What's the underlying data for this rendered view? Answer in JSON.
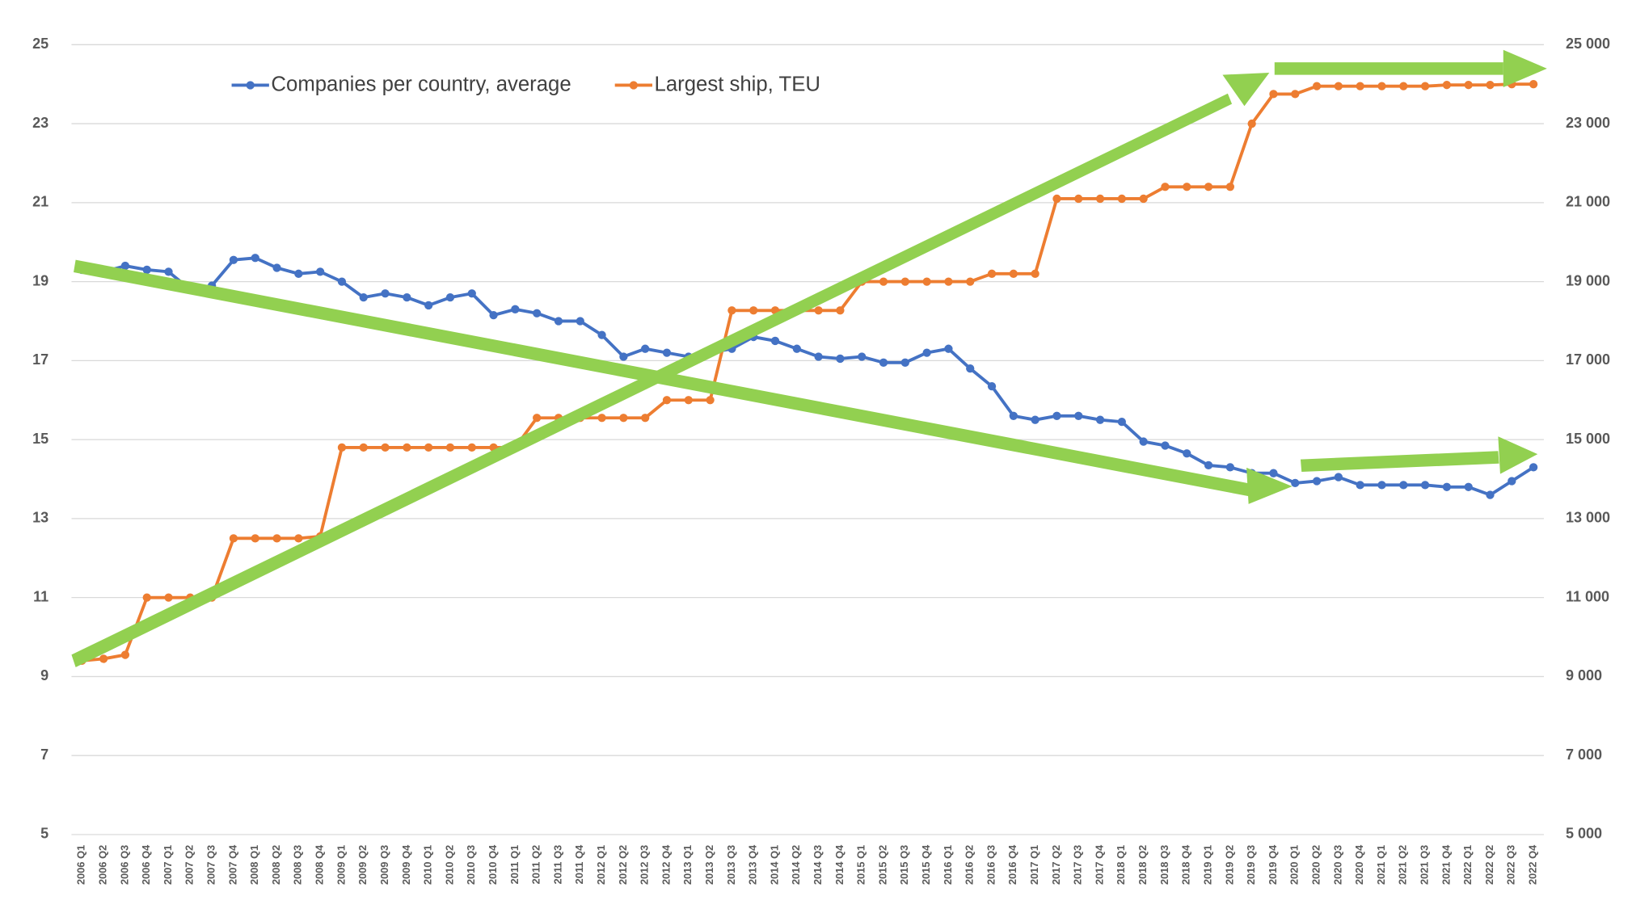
{
  "chart_data": {
    "type": "line",
    "categories": [
      "2006 Q1",
      "2006 Q2",
      "2006 Q3",
      "2006 Q4",
      "2007 Q1",
      "2007 Q2",
      "2007 Q3",
      "2007 Q4",
      "2008 Q1",
      "2008 Q2",
      "2008 Q3",
      "2008 Q4",
      "2009 Q1",
      "2009 Q2",
      "2009 Q3",
      "2009 Q4",
      "2010 Q1",
      "2010 Q2",
      "2010 Q3",
      "2010 Q4",
      "2011 Q1",
      "2011 Q2",
      "2011 Q3",
      "2011 Q4",
      "2012 Q1",
      "2012 Q2",
      "2012 Q3",
      "2012 Q4",
      "2013 Q1",
      "2013 Q2",
      "2013 Q3",
      "2013 Q4",
      "2014 Q1",
      "2014 Q2",
      "2014 Q3",
      "2014 Q4",
      "2015 Q1",
      "2015 Q2",
      "2015 Q3",
      "2015 Q4",
      "2016 Q1",
      "2016 Q2",
      "2016 Q3",
      "2016 Q4",
      "2017 Q1",
      "2017 Q2",
      "2017 Q3",
      "2017 Q4",
      "2018 Q1",
      "2018 Q2",
      "2018 Q3",
      "2018 Q4",
      "2019 Q1",
      "2019 Q2",
      "2019 Q3",
      "2019 Q4",
      "2020 Q1",
      "2020 Q2",
      "2020 Q3",
      "2020 Q4",
      "2021 Q1",
      "2021 Q2",
      "2021 Q3",
      "2021 Q4",
      "2022 Q1",
      "2022 Q2",
      "2022 Q3",
      "2022 Q4"
    ],
    "series": [
      {
        "name": "Companies per country, average",
        "color": "#4472c4",
        "axis": "y",
        "values": [
          19.3,
          19.25,
          19.4,
          19.3,
          19.25,
          18.8,
          18.9,
          19.55,
          19.6,
          19.35,
          19.2,
          19.25,
          19.0,
          18.6,
          18.7,
          18.6,
          18.4,
          18.6,
          18.7,
          18.15,
          18.3,
          18.2,
          18.0,
          18.0,
          17.65,
          17.1,
          17.3,
          17.2,
          17.1,
          17.2,
          17.3,
          17.6,
          17.5,
          17.3,
          17.1,
          17.05,
          17.1,
          16.95,
          16.95,
          17.2,
          17.3,
          16.8,
          16.35,
          15.6,
          15.5,
          15.6,
          15.6,
          15.5,
          15.45,
          14.95,
          14.85,
          14.65,
          14.35,
          14.3,
          14.15,
          14.15,
          13.9,
          13.95,
          14.05,
          13.85,
          13.85,
          13.85,
          13.85,
          13.8,
          13.8,
          13.6,
          13.95,
          14.3
        ]
      },
      {
        "name": "Largest ship, TEU",
        "color": "#ed7d31",
        "axis": "y2",
        "values": [
          9400,
          9450,
          9550,
          11000,
          11000,
          11000,
          11000,
          12500,
          12500,
          12500,
          12500,
          12550,
          14800,
          14800,
          14800,
          14800,
          14800,
          14800,
          14800,
          14800,
          14800,
          15550,
          15550,
          15550,
          15550,
          15550,
          15550,
          16000,
          16000,
          16000,
          18270,
          18270,
          18270,
          18270,
          18270,
          18270,
          19000,
          19000,
          19000,
          19000,
          19000,
          19000,
          19200,
          19200,
          19200,
          21100,
          21100,
          21100,
          21100,
          21100,
          21400,
          21400,
          21400,
          21400,
          23000,
          23750,
          23750,
          23950,
          23950,
          23950,
          23950,
          23950,
          23950,
          23980,
          23980,
          23980,
          24000,
          24000
        ]
      }
    ],
    "ylim": [
      5,
      25
    ],
    "yticks": [
      5,
      7,
      9,
      11,
      13,
      15,
      17,
      19,
      21,
      23,
      25
    ],
    "y2lim": [
      5000,
      25000
    ],
    "y2ticks": [
      {
        "value": 5000,
        "label": "5 000"
      },
      {
        "value": 7000,
        "label": "7 000"
      },
      {
        "value": 9000,
        "label": "9 000"
      },
      {
        "value": 11000,
        "label": "11 000"
      },
      {
        "value": 13000,
        "label": "13 000"
      },
      {
        "value": 15000,
        "label": "15 000"
      },
      {
        "value": 17000,
        "label": "17 000"
      },
      {
        "value": 19000,
        "label": "19 000"
      },
      {
        "value": 21000,
        "label": "21 000"
      },
      {
        "value": 23000,
        "label": "23 000"
      },
      {
        "value": 25000,
        "label": "25 000"
      }
    ],
    "grid": true,
    "legend": "top"
  }
}
